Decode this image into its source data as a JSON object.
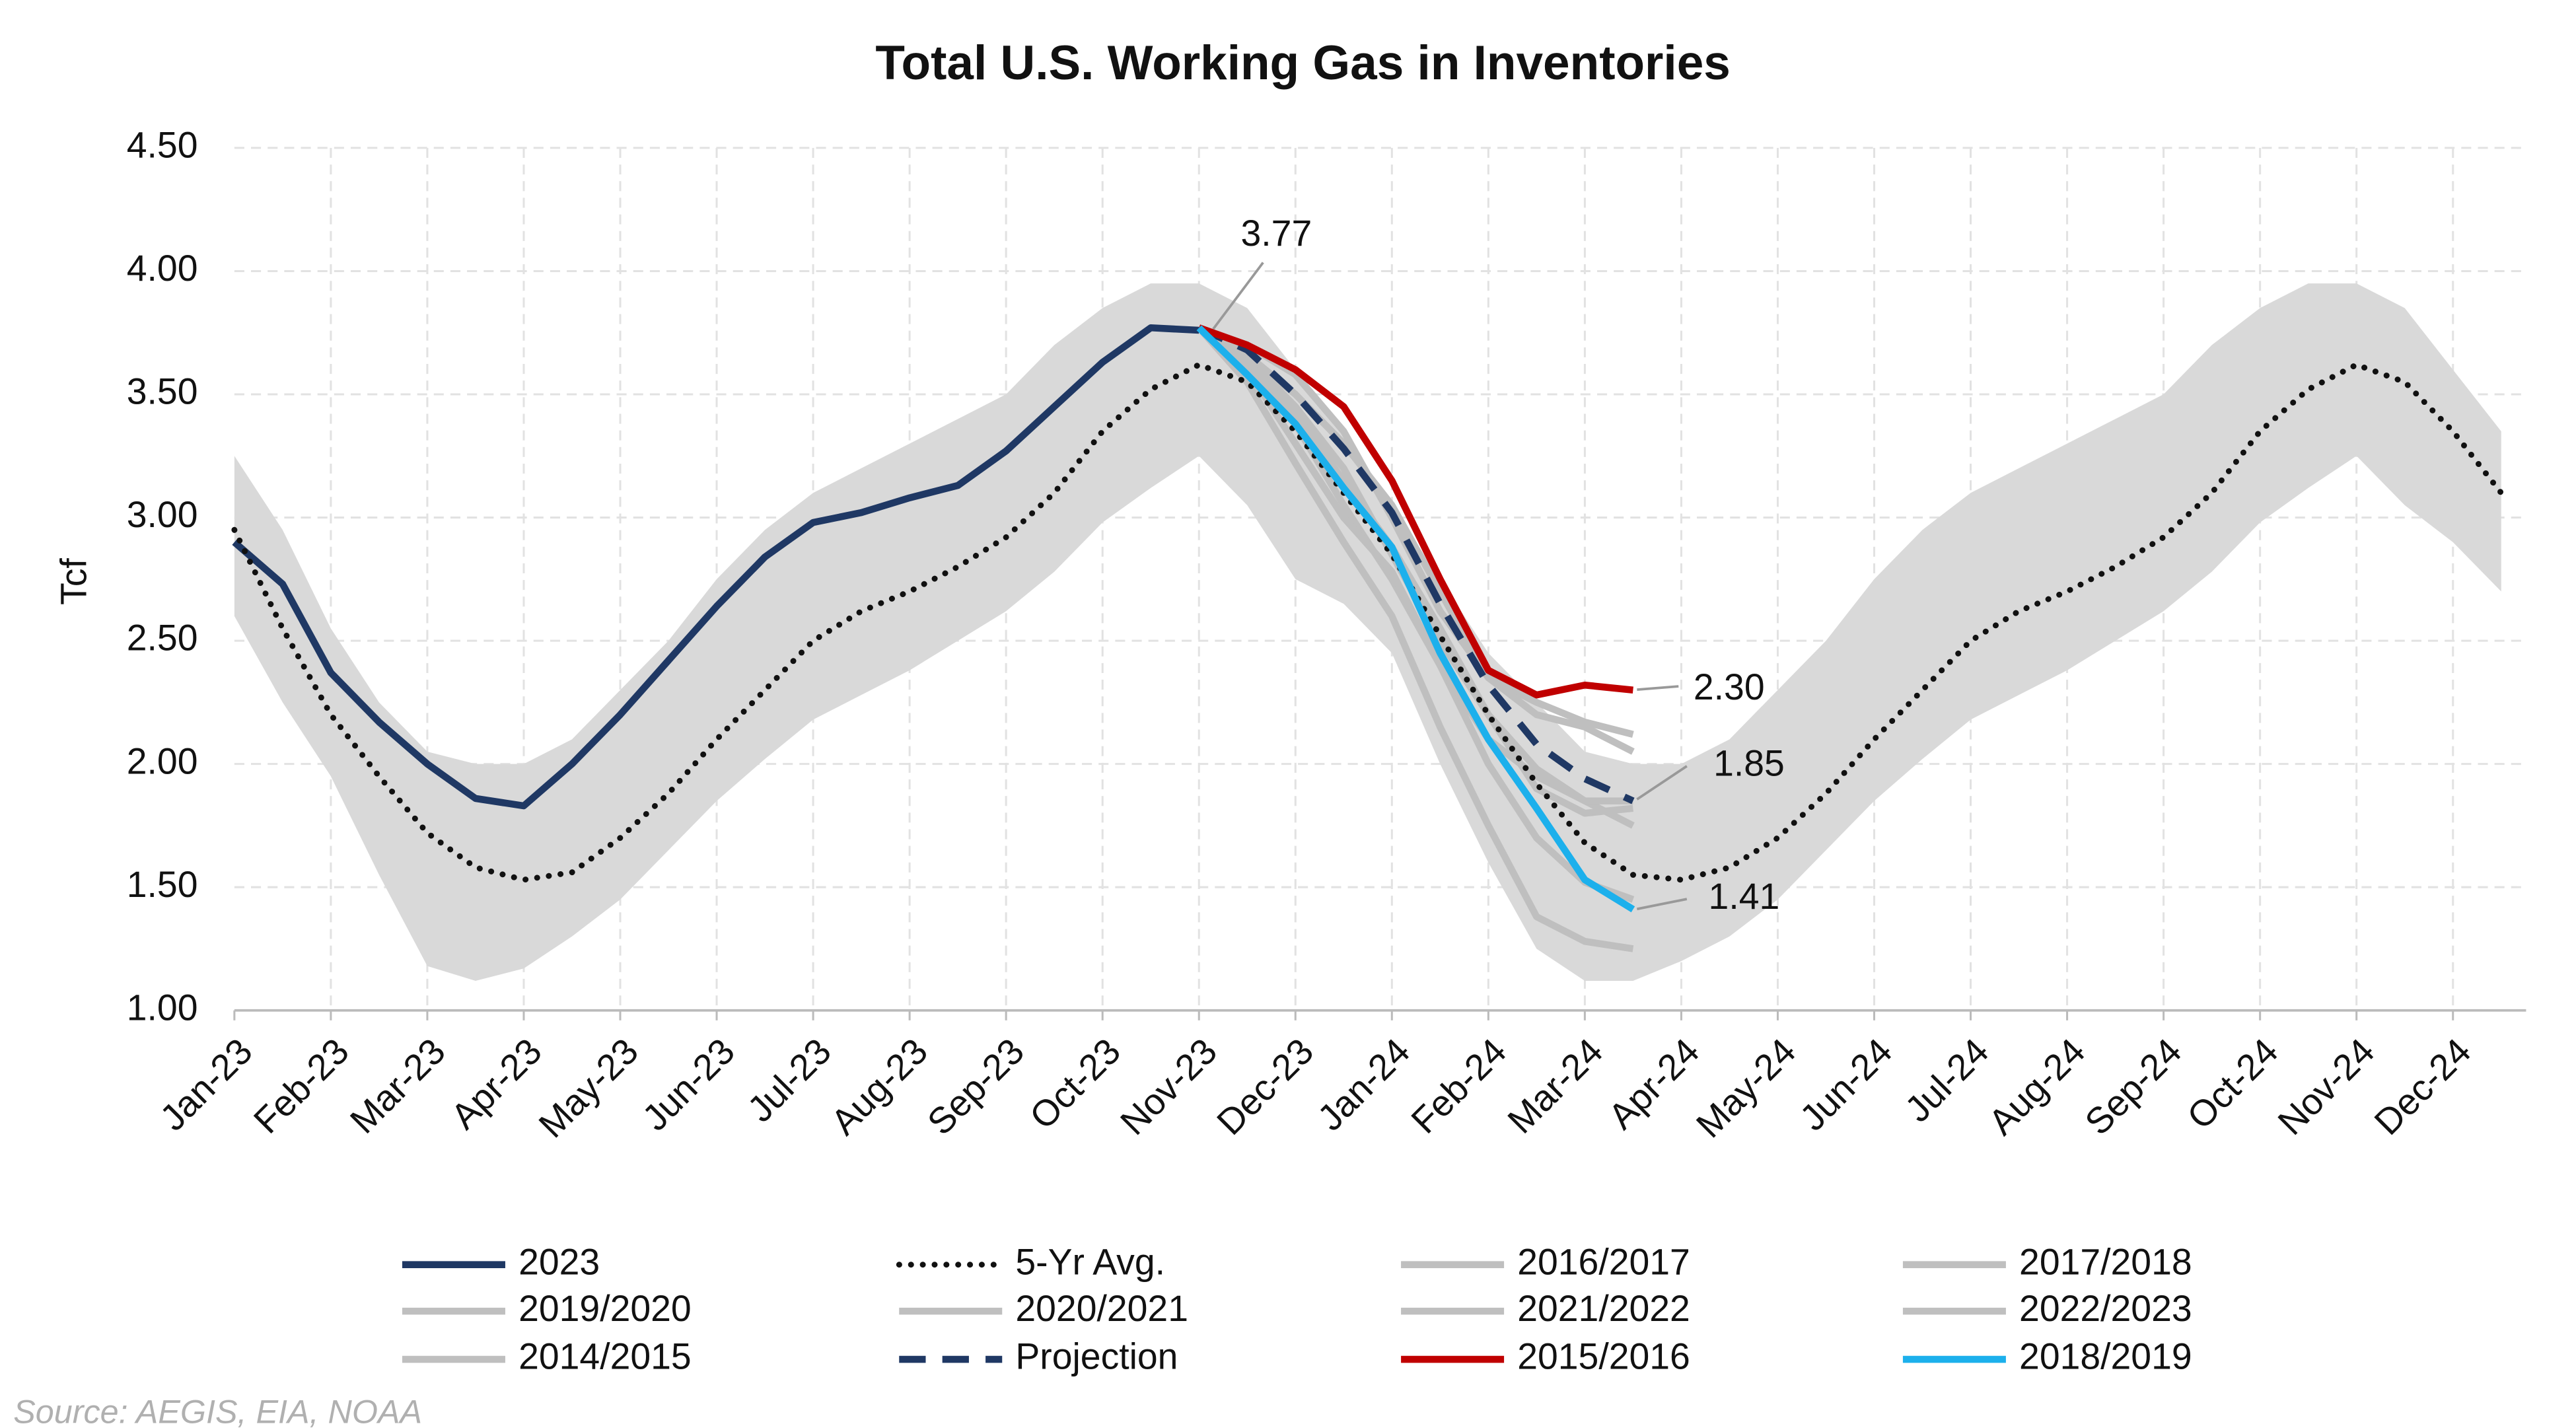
{
  "chart_data": {
    "type": "line",
    "title": "Total U.S. Working Gas in Inventories",
    "y_label": "Tcf",
    "source": "Source: AEGIS, EIA, NOAA",
    "categories": [
      "Jan-23",
      null,
      "Feb-23",
      null,
      "Mar-23",
      null,
      "Apr-23",
      null,
      "May-23",
      null,
      "Jun-23",
      null,
      "Jul-23",
      null,
      "Aug-23",
      null,
      "Sep-23",
      null,
      "Oct-23",
      null,
      "Nov-23",
      null,
      "Dec-23",
      null,
      "Jan-24",
      null,
      "Feb-24",
      null,
      "Mar-24",
      null,
      "Apr-24",
      null,
      "May-24",
      null,
      "Jun-24",
      null,
      "Jul-24",
      null,
      "Aug-24",
      null,
      "Sep-24",
      null,
      "Oct-24",
      null,
      "Nov-24",
      null,
      "Dec-24",
      null
    ],
    "ylim": [
      1,
      4.5
    ],
    "yticks": [
      {
        "value": 1,
        "label": "1.00"
      },
      {
        "value": 1.5,
        "label": "1.50"
      },
      {
        "value": 2,
        "label": "2.00"
      },
      {
        "value": 2.5,
        "label": "2.50"
      },
      {
        "value": 3,
        "label": "3.00"
      },
      {
        "value": 3.5,
        "label": "3.50"
      },
      {
        "value": 4,
        "label": "4.00"
      },
      {
        "value": 4.5,
        "label": "4.50"
      }
    ],
    "grid": true,
    "band": {
      "color": "#d9d9d9",
      "lower": [
        2.6,
        2.25,
        1.95,
        1.55,
        1.18,
        1.12,
        1.17,
        1.3,
        1.45,
        1.65,
        1.85,
        2.02,
        2.18,
        2.28,
        2.38,
        2.5,
        2.62,
        2.78,
        2.98,
        3.12,
        3.25,
        3.05,
        2.75,
        2.65,
        2.45,
        2.0,
        1.6,
        1.25,
        1.12,
        1.12,
        1.2,
        1.3,
        1.45,
        1.65,
        1.85,
        2.02,
        2.18,
        2.28,
        2.38,
        2.5,
        2.62,
        2.78,
        2.98,
        3.12,
        3.25,
        3.05,
        2.9,
        2.7
      ],
      "upper": [
        3.25,
        2.95,
        2.55,
        2.25,
        2.05,
        2.0,
        2.0,
        2.1,
        2.3,
        2.5,
        2.75,
        2.95,
        3.1,
        3.2,
        3.3,
        3.4,
        3.5,
        3.7,
        3.85,
        3.95,
        3.95,
        3.85,
        3.6,
        3.35,
        3.05,
        2.75,
        2.45,
        2.25,
        2.05,
        2.0,
        2.0,
        2.1,
        2.3,
        2.5,
        2.75,
        2.95,
        3.1,
        3.2,
        3.3,
        3.4,
        3.5,
        3.7,
        3.85,
        3.95,
        3.95,
        3.85,
        3.6,
        3.35
      ]
    },
    "series": [
      {
        "name": "2023",
        "color": "#1f3864",
        "style": "solid",
        "values": [
          2.9,
          2.73,
          2.37,
          2.17,
          2.0,
          1.86,
          1.83,
          2.0,
          2.2,
          2.42,
          2.64,
          2.84,
          2.98,
          3.02,
          3.08,
          3.13,
          3.27,
          3.45,
          3.63,
          3.77,
          3.76,
          null,
          null,
          null,
          null,
          null,
          null,
          null,
          null,
          null,
          null,
          null,
          null,
          null,
          null,
          null,
          null,
          null,
          null,
          null,
          null,
          null,
          null,
          null,
          null,
          null,
          null,
          null
        ]
      },
      {
        "name": "5-Yr Avg.",
        "color": "#111111",
        "style": "dotted",
        "values": [
          2.95,
          2.55,
          2.2,
          1.95,
          1.72,
          1.58,
          1.53,
          1.56,
          1.7,
          1.88,
          2.1,
          2.3,
          2.5,
          2.62,
          2.7,
          2.8,
          2.92,
          3.1,
          3.35,
          3.52,
          3.62,
          3.55,
          3.35,
          3.1,
          2.85,
          2.52,
          2.2,
          1.92,
          1.68,
          1.55,
          1.53,
          1.58,
          1.7,
          1.88,
          2.1,
          2.3,
          2.5,
          2.62,
          2.7,
          2.8,
          2.92,
          3.1,
          3.35,
          3.52,
          3.62,
          3.55,
          3.35,
          3.1
        ]
      },
      {
        "name": "2016/2017",
        "color": "#bfbfbf",
        "style": "solid",
        "values": [
          null,
          null,
          null,
          null,
          null,
          null,
          null,
          null,
          null,
          null,
          null,
          null,
          null,
          null,
          null,
          null,
          null,
          null,
          null,
          null,
          3.77,
          3.7,
          3.58,
          3.35,
          3.0,
          2.62,
          2.35,
          2.25,
          2.17,
          2.12,
          null,
          null,
          null,
          null,
          null,
          null,
          null,
          null,
          null,
          null,
          null,
          null,
          null,
          null,
          null,
          null,
          null,
          null
        ]
      },
      {
        "name": "2017/2018",
        "color": "#bfbfbf",
        "style": "solid",
        "values": [
          null,
          null,
          null,
          null,
          null,
          null,
          null,
          null,
          null,
          null,
          null,
          null,
          null,
          null,
          null,
          null,
          null,
          null,
          null,
          null,
          3.77,
          3.65,
          3.45,
          3.2,
          2.85,
          2.5,
          2.2,
          1.98,
          1.85,
          1.75,
          null,
          null,
          null,
          null,
          null,
          null,
          null,
          null,
          null,
          null,
          null,
          null,
          null,
          null,
          null,
          null,
          null,
          null
        ]
      },
      {
        "name": "2019/2020",
        "color": "#bfbfbf",
        "style": "solid",
        "values": [
          null,
          null,
          null,
          null,
          null,
          null,
          null,
          null,
          null,
          null,
          null,
          null,
          null,
          null,
          null,
          null,
          null,
          null,
          null,
          null,
          3.77,
          3.66,
          3.5,
          3.3,
          3.05,
          2.7,
          2.35,
          2.2,
          2.15,
          2.05,
          null,
          null,
          null,
          null,
          null,
          null,
          null,
          null,
          null,
          null,
          null,
          null,
          null,
          null,
          null,
          null,
          null,
          null
        ]
      },
      {
        "name": "2020/2021",
        "color": "#bfbfbf",
        "style": "solid",
        "values": [
          null,
          null,
          null,
          null,
          null,
          null,
          null,
          null,
          null,
          null,
          null,
          null,
          null,
          null,
          null,
          null,
          null,
          null,
          null,
          null,
          3.77,
          3.62,
          3.42,
          3.15,
          2.88,
          2.55,
          2.2,
          1.9,
          1.8,
          1.82,
          null,
          null,
          null,
          null,
          null,
          null,
          null,
          null,
          null,
          null,
          null,
          null,
          null,
          null,
          null,
          null,
          null,
          null
        ]
      },
      {
        "name": "2021/2022",
        "color": "#bfbfbf",
        "style": "solid",
        "values": [
          null,
          null,
          null,
          null,
          null,
          null,
          null,
          null,
          null,
          null,
          null,
          null,
          null,
          null,
          null,
          null,
          null,
          null,
          null,
          null,
          3.77,
          3.6,
          3.38,
          3.05,
          2.75,
          2.4,
          2.0,
          1.7,
          1.52,
          1.45,
          null,
          null,
          null,
          null,
          null,
          null,
          null,
          null,
          null,
          null,
          null,
          null,
          null,
          null,
          null,
          null,
          null,
          null
        ]
      },
      {
        "name": "2022/2023",
        "color": "#bfbfbf",
        "style": "solid",
        "values": [
          null,
          null,
          null,
          null,
          null,
          null,
          null,
          null,
          null,
          null,
          null,
          null,
          null,
          null,
          null,
          null,
          null,
          null,
          null,
          null,
          3.77,
          3.6,
          3.3,
          3.0,
          2.78,
          2.4,
          2.1,
          1.95,
          1.85,
          1.85,
          null,
          null,
          null,
          null,
          null,
          null,
          null,
          null,
          null,
          null,
          null,
          null,
          null,
          null,
          null,
          null,
          null,
          null
        ]
      },
      {
        "name": "2014/2015",
        "color": "#bfbfbf",
        "style": "solid",
        "values": [
          null,
          null,
          null,
          null,
          null,
          null,
          null,
          null,
          null,
          null,
          null,
          null,
          null,
          null,
          null,
          null,
          null,
          null,
          null,
          null,
          3.77,
          3.55,
          3.22,
          2.9,
          2.6,
          2.15,
          1.75,
          1.38,
          1.28,
          1.25,
          null,
          null,
          null,
          null,
          null,
          null,
          null,
          null,
          null,
          null,
          null,
          null,
          null,
          null,
          null,
          null,
          null,
          null
        ]
      },
      {
        "name": "Projection",
        "color": "#1f3864",
        "style": "dashed",
        "values": [
          null,
          null,
          null,
          null,
          null,
          null,
          null,
          null,
          null,
          null,
          null,
          null,
          null,
          null,
          null,
          null,
          null,
          null,
          null,
          null,
          3.77,
          3.68,
          3.5,
          3.28,
          3.02,
          2.65,
          2.32,
          2.08,
          1.94,
          1.85,
          null,
          null,
          null,
          null,
          null,
          null,
          null,
          null,
          null,
          null,
          null,
          null,
          null,
          null,
          null,
          null,
          null,
          null
        ]
      },
      {
        "name": "2015/2016",
        "color": "#c00000",
        "style": "solid",
        "values": [
          null,
          null,
          null,
          null,
          null,
          null,
          null,
          null,
          null,
          null,
          null,
          null,
          null,
          null,
          null,
          null,
          null,
          null,
          null,
          null,
          3.77,
          3.7,
          3.6,
          3.45,
          3.15,
          2.75,
          2.38,
          2.28,
          2.32,
          2.3,
          null,
          null,
          null,
          null,
          null,
          null,
          null,
          null,
          null,
          null,
          null,
          null,
          null,
          null,
          null,
          null,
          null,
          null
        ]
      },
      {
        "name": "2018/2019",
        "color": "#1cb0ec",
        "style": "solid",
        "values": [
          null,
          null,
          null,
          null,
          null,
          null,
          null,
          null,
          null,
          null,
          null,
          null,
          null,
          null,
          null,
          null,
          null,
          null,
          null,
          null,
          3.77,
          3.58,
          3.38,
          3.12,
          2.88,
          2.45,
          2.1,
          1.82,
          1.53,
          1.41,
          null,
          null,
          null,
          null,
          null,
          null,
          null,
          null,
          null,
          null,
          null,
          null,
          null,
          null,
          null,
          null,
          null,
          null
        ]
      }
    ],
    "annotations": [
      "3.77",
      "2.30",
      "1.85",
      "1.41"
    ]
  }
}
